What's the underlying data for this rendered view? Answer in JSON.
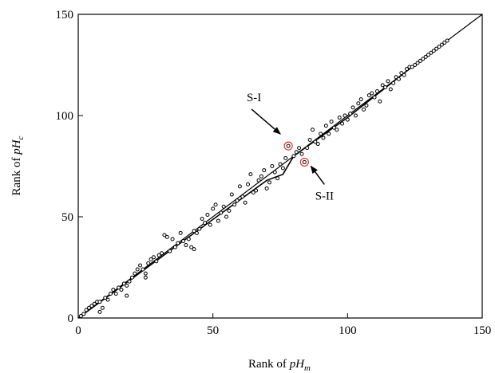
{
  "chart_data": {
    "type": "scatter",
    "title": "",
    "xlabel": {
      "prefix": "Rank of ",
      "italic": "pH",
      "sub": "m"
    },
    "ylabel": {
      "prefix": "Rank of ",
      "italic": "pH",
      "sub": "c"
    },
    "xlim": [
      0,
      150
    ],
    "ylim": [
      0,
      150
    ],
    "xticks": [
      "0",
      "50",
      "100",
      "150"
    ],
    "yticks": [
      "0",
      "50",
      "100",
      "150"
    ],
    "grid": false,
    "legend": "none",
    "reference_line": {
      "x": [
        0,
        150
      ],
      "y": [
        0,
        150
      ]
    },
    "fit_line": {
      "x": [
        0,
        40,
        70,
        76,
        80,
        100,
        122,
        137
      ],
      "y": [
        0,
        39,
        68,
        71,
        80,
        99,
        122,
        137
      ]
    },
    "points": [
      [
        1,
        1
      ],
      [
        2,
        2
      ],
      [
        3,
        4
      ],
      [
        4,
        5
      ],
      [
        5,
        6
      ],
      [
        6,
        7
      ],
      [
        7,
        8
      ],
      [
        8,
        3
      ],
      [
        8,
        8
      ],
      [
        9,
        5
      ],
      [
        10,
        10
      ],
      [
        11,
        9
      ],
      [
        12,
        12
      ],
      [
        13,
        14
      ],
      [
        14,
        12
      ],
      [
        15,
        15
      ],
      [
        16,
        14
      ],
      [
        17,
        17
      ],
      [
        18,
        16
      ],
      [
        18,
        11
      ],
      [
        19,
        18
      ],
      [
        20,
        20
      ],
      [
        21,
        22
      ],
      [
        22,
        24
      ],
      [
        23,
        26
      ],
      [
        24,
        24
      ],
      [
        25,
        20
      ],
      [
        25,
        22
      ],
      [
        26,
        27
      ],
      [
        27,
        29
      ],
      [
        28,
        30
      ],
      [
        29,
        28
      ],
      [
        30,
        31
      ],
      [
        31,
        32
      ],
      [
        32,
        41
      ],
      [
        33,
        40
      ],
      [
        34,
        33
      ],
      [
        35,
        39
      ],
      [
        36,
        35
      ],
      [
        37,
        37
      ],
      [
        38,
        42
      ],
      [
        39,
        38
      ],
      [
        40,
        36
      ],
      [
        41,
        39
      ],
      [
        42,
        35
      ],
      [
        43,
        34
      ],
      [
        43,
        43
      ],
      [
        44,
        42
      ],
      [
        45,
        44
      ],
      [
        46,
        49
      ],
      [
        47,
        47
      ],
      [
        48,
        51
      ],
      [
        49,
        46
      ],
      [
        50,
        54
      ],
      [
        51,
        56
      ],
      [
        52,
        48
      ],
      [
        53,
        52
      ],
      [
        54,
        55
      ],
      [
        55,
        50
      ],
      [
        56,
        53
      ],
      [
        57,
        61
      ],
      [
        58,
        56
      ],
      [
        59,
        58
      ],
      [
        60,
        65
      ],
      [
        61,
        60
      ],
      [
        62,
        57
      ],
      [
        63,
        66
      ],
      [
        64,
        71
      ],
      [
        65,
        62
      ],
      [
        66,
        63
      ],
      [
        67,
        68
      ],
      [
        68,
        70
      ],
      [
        69,
        73
      ],
      [
        70,
        64
      ],
      [
        71,
        67
      ],
      [
        72,
        75
      ],
      [
        73,
        72
      ],
      [
        74,
        69
      ],
      [
        75,
        76
      ],
      [
        76,
        74
      ],
      [
        77,
        79
      ],
      [
        78,
        85
      ],
      [
        80,
        80
      ],
      [
        81,
        82
      ],
      [
        82,
        84
      ],
      [
        83,
        81
      ],
      [
        84,
        77
      ],
      [
        85,
        84
      ],
      [
        86,
        88
      ],
      [
        87,
        93
      ],
      [
        88,
        87
      ],
      [
        89,
        86
      ],
      [
        90,
        91
      ],
      [
        91,
        89
      ],
      [
        92,
        95
      ],
      [
        93,
        91
      ],
      [
        94,
        97
      ],
      [
        95,
        94
      ],
      [
        96,
        93
      ],
      [
        97,
        99
      ],
      [
        98,
        96
      ],
      [
        99,
        100
      ],
      [
        100,
        98
      ],
      [
        101,
        101
      ],
      [
        102,
        104
      ],
      [
        103,
        100
      ],
      [
        104,
        106
      ],
      [
        105,
        108
      ],
      [
        106,
        103
      ],
      [
        107,
        105
      ],
      [
        108,
        110
      ],
      [
        109,
        111
      ],
      [
        110,
        109
      ],
      [
        111,
        112
      ],
      [
        112,
        107
      ],
      [
        113,
        115
      ],
      [
        114,
        114
      ],
      [
        115,
        117
      ],
      [
        116,
        113
      ],
      [
        117,
        116
      ],
      [
        118,
        119
      ],
      [
        119,
        118
      ],
      [
        120,
        121
      ],
      [
        121,
        120
      ],
      [
        122,
        123
      ],
      [
        123,
        124
      ],
      [
        124,
        124
      ],
      [
        125,
        125
      ],
      [
        126,
        126
      ],
      [
        127,
        127
      ],
      [
        128,
        128
      ],
      [
        129,
        129
      ],
      [
        130,
        130
      ],
      [
        131,
        131
      ],
      [
        132,
        132
      ],
      [
        133,
        133
      ],
      [
        134,
        134
      ],
      [
        135,
        135
      ],
      [
        136,
        136
      ],
      [
        137,
        137
      ]
    ],
    "highlighted": [
      {
        "label": "S-I",
        "x": 78,
        "y": 85
      },
      {
        "label": "S-II",
        "x": 84,
        "y": 77
      }
    ],
    "highlight_color": "#e0302a"
  }
}
